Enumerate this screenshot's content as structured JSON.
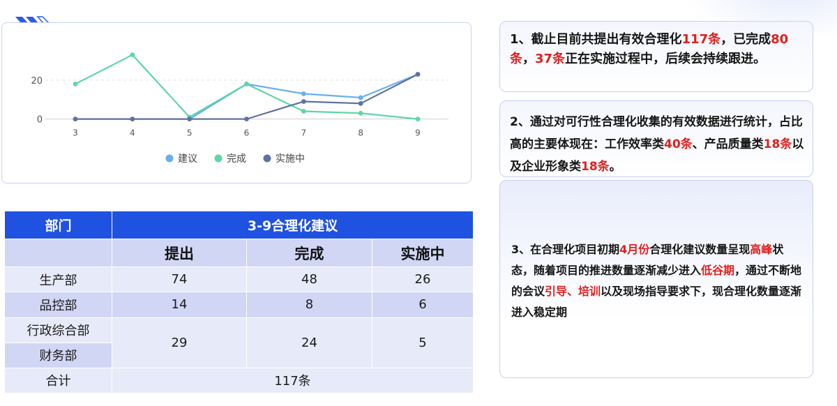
{
  "chart_data": {
    "type": "line",
    "x": [
      3,
      4,
      5,
      6,
      7,
      8,
      9
    ],
    "yticks": [
      0,
      20
    ],
    "ylim": [
      -3,
      35
    ],
    "grid": true,
    "legend_position": "bottom-center",
    "series": [
      {
        "name": "建议",
        "color": "#6aaef0",
        "values": [
          0,
          0,
          0,
          18,
          13,
          11,
          23
        ]
      },
      {
        "name": "完成",
        "color": "#5fd6a6",
        "values": [
          18,
          33,
          1,
          18,
          4,
          3,
          0
        ]
      },
      {
        "name": "实施中",
        "color": "#6072a0",
        "values": [
          0,
          0,
          0,
          0,
          9,
          8,
          23
        ]
      }
    ]
  },
  "table": {
    "head_dept": "部门",
    "head_title": "3-9合理化建议",
    "sub_headers": [
      "提出",
      "完成",
      "实施中"
    ],
    "rows": [
      {
        "dept": "生产部",
        "values": [
          "74",
          "48",
          "26"
        ]
      },
      {
        "dept": "品控部",
        "values": [
          "14",
          "8",
          "6"
        ]
      }
    ],
    "merged_depts": [
      "行政综合部",
      "财务部"
    ],
    "merged_values": [
      "29",
      "24",
      "5"
    ],
    "total_label": "合计",
    "total_value": "117条"
  },
  "notes": {
    "note1": {
      "p1": "1、截止目前共提出有效合理化",
      "r1": "117条",
      "p2": "，已完成",
      "r2": "80条",
      "p3": "，",
      "r3": "37条",
      "p4": "正在实施过程中，后续会持续跟进。"
    },
    "note2": {
      "p1": "2、通过对可行性合理化收集的有效数据进行统计，占比高的主要体现在：工作效率类",
      "r1": "40条",
      "p2": "、产品质量类",
      "r2": "18条",
      "p3": "以及企业形象类",
      "r3": "18条",
      "p4": "。"
    },
    "note3": {
      "p1": "3、在合理化项目初期",
      "r1": "4月份",
      "p2": "合理化建议数量呈现",
      "r2": "高峰",
      "p3": "状态，随着项目的推进数量逐渐减少进入",
      "r3": "低谷期",
      "p4": "，通过不断地的会议",
      "r4": "引导、培训",
      "p5": "以及现场指导要求下，现合理化数量逐渐进入稳定期"
    }
  }
}
